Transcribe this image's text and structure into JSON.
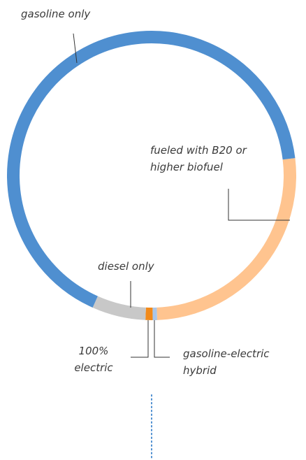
{
  "chart_data": {
    "type": "donut",
    "categories": [
      "fueled with B20 or higher biofuel",
      "gasoline-electric hybrid",
      "100% electric",
      "diesel only",
      "gasoline only"
    ],
    "values": [
      26.3,
      0.5,
      0.8,
      6,
      66.4
    ],
    "colors": [
      "#ffc48f",
      "#a9c6ea",
      "#f28a1a",
      "#c8c8c8",
      "#4f8fd0"
    ]
  }
}
